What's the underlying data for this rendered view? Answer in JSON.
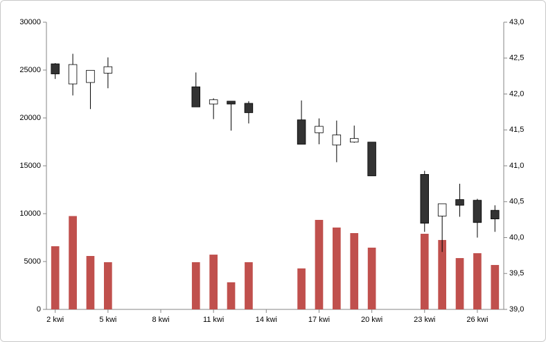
{
  "chart_data": {
    "type": "candlestick",
    "categories": [
      "2 kwi",
      null,
      null,
      "5 kwi",
      null,
      null,
      "8 kwi",
      null,
      null,
      "11 kwi",
      null,
      null,
      "14 kwi",
      null,
      null,
      "17 kwi",
      null,
      null,
      "20 kwi",
      null,
      null,
      "23 kwi",
      null,
      null,
      "26 kwi",
      null
    ],
    "volume": {
      "color": "#c0504d",
      "values": [
        6600,
        9750,
        5580,
        4930,
        null,
        null,
        null,
        null,
        4930,
        5720,
        2830,
        4930,
        null,
        null,
        4280,
        9350,
        8550,
        7970,
        6450,
        null,
        null,
        7900,
        7250,
        5360,
        5870,
        4640
      ]
    },
    "ohlc": {
      "up_color": "#ffffff",
      "down_color": "#333333",
      "axis": "y2",
      "open": [
        42.42,
        42.14,
        42.16,
        42.29,
        null,
        null,
        null,
        null,
        42.1,
        41.86,
        41.9,
        41.87,
        null,
        null,
        41.64,
        41.46,
        41.29,
        41.33,
        41.33,
        null,
        null,
        40.88,
        40.3,
        40.53,
        40.52,
        40.38
      ],
      "high": [
        42.43,
        42.56,
        42.33,
        42.51,
        null,
        null,
        null,
        null,
        42.3,
        41.94,
        41.9,
        41.9,
        null,
        null,
        41.91,
        41.66,
        41.63,
        41.56,
        41.33,
        null,
        null,
        40.93,
        40.47,
        40.75,
        40.54,
        40.45
      ],
      "low": [
        42.21,
        41.98,
        41.79,
        42.08,
        null,
        null,
        null,
        null,
        41.82,
        41.65,
        41.49,
        41.59,
        null,
        null,
        41.3,
        41.3,
        41.05,
        41.32,
        40.86,
        null,
        null,
        40.08,
        39.8,
        40.29,
        40.0,
        40.08
      ],
      "close": [
        42.28,
        42.41,
        42.33,
        42.38,
        null,
        null,
        null,
        null,
        41.82,
        41.92,
        41.86,
        41.74,
        null,
        null,
        41.3,
        41.55,
        41.43,
        41.38,
        40.86,
        null,
        null,
        40.2,
        40.47,
        40.45,
        40.21,
        40.26
      ]
    },
    "ylim": [
      0,
      30000
    ],
    "yticks": [
      0,
      5000,
      10000,
      15000,
      20000,
      25000,
      30000
    ],
    "y2lim": [
      39.0,
      43.0
    ],
    "y2ticks": [
      {
        "value": 39.0,
        "label": "39,0"
      },
      {
        "value": 39.5,
        "label": "39,5"
      },
      {
        "value": 40.0,
        "label": "40,0"
      },
      {
        "value": 40.5,
        "label": "40,5"
      },
      {
        "value": 41.0,
        "label": "41,0"
      },
      {
        "value": 41.5,
        "label": "41,5"
      },
      {
        "value": 42.0,
        "label": "42,0"
      },
      {
        "value": 42.5,
        "label": "42,5"
      },
      {
        "value": 43.0,
        "label": "43,0"
      }
    ]
  }
}
